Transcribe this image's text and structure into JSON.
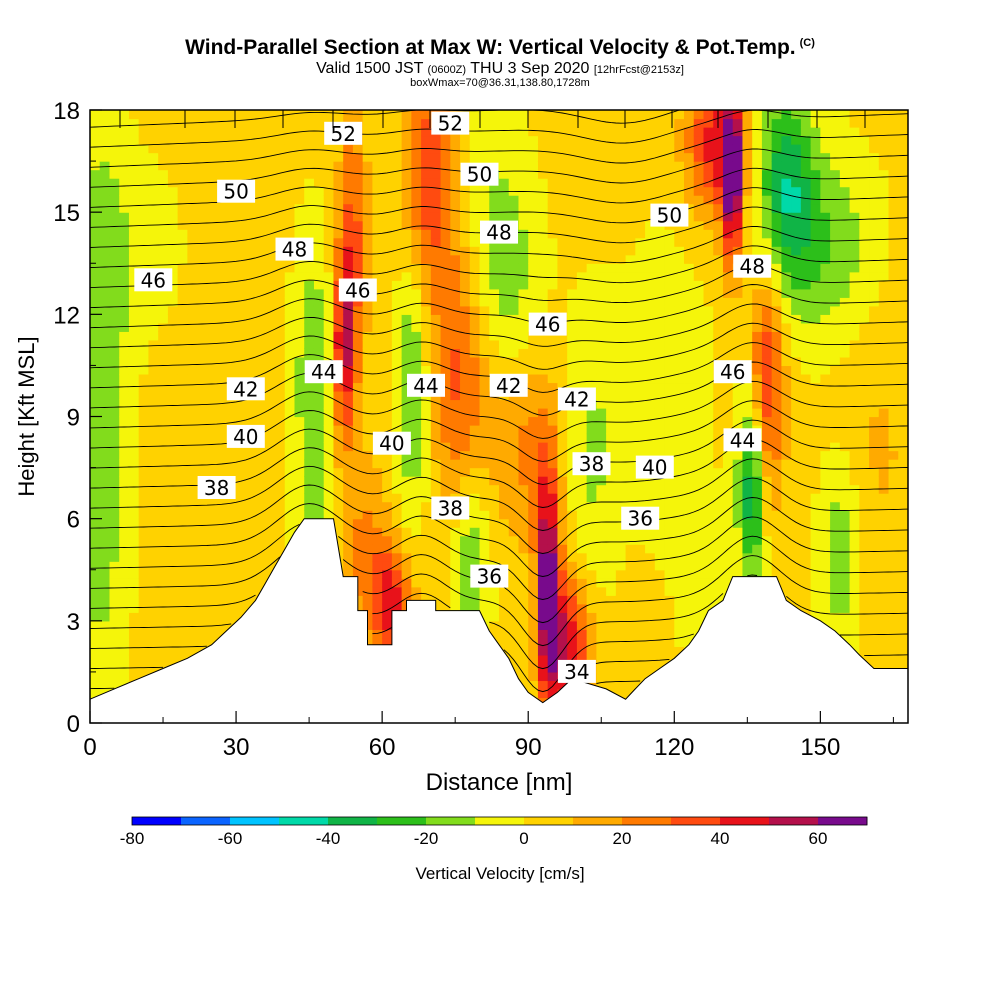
{
  "title": "Wind-Parallel Section at Max W: Vertical Velocity & Pot.Temp.",
  "copyright": "(C)",
  "subtitle_main": "Valid 1500 JST",
  "subtitle_utc": "(0600Z)",
  "subtitle_date": "THU 3 Sep 2020",
  "subtitle_fcst": "[12hrFcst@2153z]",
  "subtitle2": "boxWmax=70@36.31,138.80,1728m",
  "colorbar_title": "Vertical Velocity [cm/s]",
  "chart_data": {
    "type": "heatmap",
    "xlabel": "Distance [nm]",
    "ylabel": "Height [Kft MSL]",
    "xlim": [
      0,
      168
    ],
    "ylim": [
      0,
      18
    ],
    "x_ticks": [
      0,
      30,
      60,
      90,
      120,
      150
    ],
    "y_ticks": [
      0,
      3,
      6,
      9,
      12,
      15,
      18
    ],
    "colorbar": {
      "levels": [
        -80,
        -70,
        -60,
        -50,
        -40,
        -30,
        -20,
        -10,
        0,
        10,
        20,
        30,
        40,
        50,
        60,
        70
      ],
      "tick_labels": [
        "-80",
        "-60",
        "-40",
        "-20",
        "0",
        "20",
        "40",
        "60"
      ],
      "colors": [
        "#0000ff",
        "#0a64ff",
        "#00c3ff",
        "#00d9a8",
        "#10b446",
        "#2cbf1a",
        "#82dc1c",
        "#f5f50a",
        "#ffd200",
        "#ffaa00",
        "#ff7a00",
        "#ff4b10",
        "#e8121a",
        "#b4104b",
        "#780a8c"
      ]
    },
    "terrain_kft": [
      [
        0,
        0.7
      ],
      [
        5,
        1.0
      ],
      [
        10,
        1.3
      ],
      [
        15,
        1.6
      ],
      [
        20,
        1.9
      ],
      [
        25,
        2.3
      ],
      [
        28,
        2.7
      ],
      [
        31,
        3.1
      ],
      [
        34,
        3.6
      ],
      [
        36,
        4.1
      ],
      [
        38,
        4.6
      ],
      [
        40,
        5.1
      ],
      [
        42,
        5.6
      ],
      [
        44,
        6.0
      ],
      [
        50,
        6.0
      ],
      [
        52,
        4.3
      ],
      [
        55,
        4.3
      ],
      [
        55,
        3.3
      ],
      [
        57,
        3.3
      ],
      [
        57,
        2.3
      ],
      [
        62,
        2.3
      ],
      [
        62,
        3.3
      ],
      [
        65,
        3.3
      ],
      [
        65,
        3.6
      ],
      [
        71,
        3.6
      ],
      [
        71,
        3.3
      ],
      [
        80,
        3.3
      ],
      [
        82,
        2.7
      ],
      [
        84,
        2.3
      ],
      [
        86,
        1.9
      ],
      [
        88,
        1.3
      ],
      [
        90,
        0.9
      ],
      [
        93,
        0.6
      ],
      [
        96,
        0.9
      ],
      [
        99,
        1.3
      ],
      [
        106,
        1.0
      ],
      [
        110,
        0.7
      ],
      [
        112,
        1.0
      ],
      [
        114,
        1.3
      ],
      [
        117,
        1.6
      ],
      [
        120,
        1.9
      ],
      [
        123,
        2.3
      ],
      [
        125,
        2.7
      ],
      [
        127,
        3.3
      ],
      [
        130,
        3.6
      ],
      [
        132,
        4.3
      ],
      [
        141,
        4.3
      ],
      [
        143,
        3.6
      ],
      [
        146,
        3.3
      ],
      [
        150,
        3.0
      ],
      [
        153,
        2.7
      ],
      [
        156,
        2.3
      ],
      [
        158,
        2.0
      ],
      [
        161,
        1.6
      ],
      [
        168,
        1.6
      ]
    ],
    "velocity_cells": [
      {
        "x": 2,
        "y": 9,
        "w": -22,
        "sx": 4,
        "sy": 6
      },
      {
        "x": 8,
        "y": 14,
        "w": -8,
        "sx": 8,
        "sy": 2
      },
      {
        "x": 46,
        "y": 10,
        "w": -22,
        "sx": 3,
        "sy": 3
      },
      {
        "x": 48,
        "y": 5,
        "w": -8,
        "sx": 4,
        "sy": 2
      },
      {
        "x": 52,
        "y": 11,
        "w": 45,
        "sx": 1.5,
        "sy": 2
      },
      {
        "x": 54,
        "y": 14,
        "w": 30,
        "sx": 2,
        "sy": 3
      },
      {
        "x": 56,
        "y": 5,
        "w": 20,
        "sx": 4,
        "sy": 2
      },
      {
        "x": 62,
        "y": 3.5,
        "w": 40,
        "sx": 3,
        "sy": 1.2
      },
      {
        "x": 66,
        "y": 10,
        "w": -25,
        "sx": 2.5,
        "sy": 3
      },
      {
        "x": 70,
        "y": 16,
        "w": 38,
        "sx": 4,
        "sy": 2.5
      },
      {
        "x": 76,
        "y": 10,
        "w": 30,
        "sx": 4,
        "sy": 3
      },
      {
        "x": 80,
        "y": 16,
        "w": -12,
        "sx": 6,
        "sy": 3
      },
      {
        "x": 78,
        "y": 5,
        "w": -25,
        "sx": 3,
        "sy": 2
      },
      {
        "x": 86,
        "y": 13,
        "w": -15,
        "sx": 5,
        "sy": 2
      },
      {
        "x": 90,
        "y": 8,
        "w": 20,
        "sx": 5,
        "sy": 2
      },
      {
        "x": 94,
        "y": 4,
        "w": 65,
        "sx": 1.6,
        "sy": 2.4
      },
      {
        "x": 97,
        "y": 2.5,
        "w": 30,
        "sx": 2.5,
        "sy": 1.5
      },
      {
        "x": 103,
        "y": 8,
        "w": -15,
        "sx": 4,
        "sy": 3
      },
      {
        "x": 100,
        "y": 2,
        "w": 25,
        "sx": 3,
        "sy": 1.5
      },
      {
        "x": 118,
        "y": 10,
        "w": -12,
        "sx": 6,
        "sy": 3
      },
      {
        "x": 126,
        "y": 4,
        "w": -8,
        "sx": 4,
        "sy": 2
      },
      {
        "x": 128,
        "y": 17,
        "w": 40,
        "sx": 4,
        "sy": 1.5
      },
      {
        "x": 132,
        "y": 16,
        "w": 65,
        "sx": 1.5,
        "sy": 1.8
      },
      {
        "x": 139,
        "y": 10,
        "w": 40,
        "sx": 2.5,
        "sy": 2.5
      },
      {
        "x": 136,
        "y": 7,
        "w": -45,
        "sx": 2,
        "sy": 2
      },
      {
        "x": 143,
        "y": 16,
        "w": -35,
        "sx": 4,
        "sy": 2
      },
      {
        "x": 150,
        "y": 14,
        "w": -22,
        "sx": 8,
        "sy": 2
      },
      {
        "x": 154,
        "y": 5,
        "w": -22,
        "sx": 3,
        "sy": 2
      },
      {
        "x": 162,
        "y": 8,
        "w": 8,
        "sx": 6,
        "sy": 3
      }
    ],
    "isentrope_labels": [
      {
        "value": "52",
        "x": 52,
        "y": 17.3
      },
      {
        "value": "52",
        "x": 74,
        "y": 17.6
      },
      {
        "value": "50",
        "x": 30,
        "y": 15.6
      },
      {
        "value": "50",
        "x": 80,
        "y": 16.1
      },
      {
        "value": "50",
        "x": 119,
        "y": 14.9
      },
      {
        "value": "48",
        "x": 42,
        "y": 13.9
      },
      {
        "value": "48",
        "x": 84,
        "y": 14.4
      },
      {
        "value": "48",
        "x": 136,
        "y": 13.4
      },
      {
        "value": "46",
        "x": 13,
        "y": 13.0
      },
      {
        "value": "46",
        "x": 55,
        "y": 12.7
      },
      {
        "value": "46",
        "x": 94,
        "y": 11.7
      },
      {
        "value": "46",
        "x": 132,
        "y": 10.3
      },
      {
        "value": "44",
        "x": 48,
        "y": 10.3
      },
      {
        "value": "44",
        "x": 69,
        "y": 9.9
      },
      {
        "value": "44",
        "x": 134,
        "y": 8.3
      },
      {
        "value": "42",
        "x": 32,
        "y": 9.8
      },
      {
        "value": "42",
        "x": 86,
        "y": 9.9
      },
      {
        "value": "42",
        "x": 100,
        "y": 9.5
      },
      {
        "value": "40",
        "x": 32,
        "y": 8.4
      },
      {
        "value": "40",
        "x": 62,
        "y": 8.2
      },
      {
        "value": "40",
        "x": 116,
        "y": 7.5
      },
      {
        "value": "38",
        "x": 26,
        "y": 6.9
      },
      {
        "value": "38",
        "x": 74,
        "y": 6.3
      },
      {
        "value": "38",
        "x": 103,
        "y": 7.6
      },
      {
        "value": "36",
        "x": 82,
        "y": 4.3
      },
      {
        "value": "36",
        "x": 113,
        "y": 6.0
      },
      {
        "value": "34",
        "x": 100,
        "y": 1.5
      }
    ]
  }
}
